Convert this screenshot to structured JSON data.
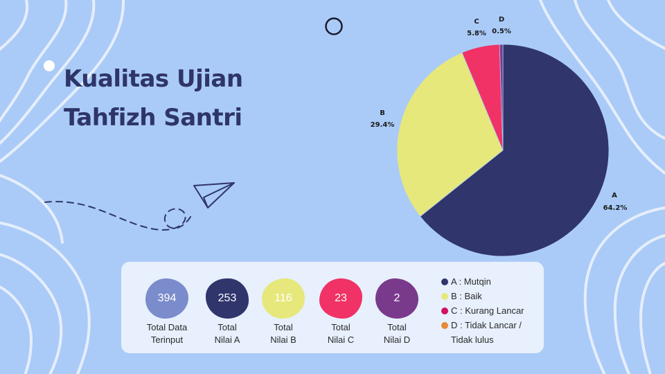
{
  "title_lines": [
    "Kualitas Ujian",
    "Tahfizh Santri"
  ],
  "colors": {
    "background": "#aacbf7",
    "deco_lines": "#e6eefc",
    "title": "#2f3568",
    "a": "#30356b",
    "b": "#e6e87b",
    "c": "#f03266",
    "d": "#7a3a8c",
    "total": "#7b8ccc"
  },
  "chart_data": {
    "type": "pie",
    "title": "",
    "categories": [
      "A",
      "B",
      "C",
      "D"
    ],
    "values": [
      64.2,
      29.4,
      5.8,
      0.5
    ],
    "value_labels": [
      "64.2%",
      "29.4%",
      "5.8%",
      "0.5%"
    ],
    "legend_position": "bottom"
  },
  "stats": [
    {
      "value": "394",
      "label_lines": [
        "Total Data",
        "Terinput"
      ],
      "color": "#7b8ccc",
      "text_color": "#ffffff"
    },
    {
      "value": "253",
      "label_lines": [
        "Total",
        "Nilai A"
      ],
      "color": "#30356b",
      "text_color": "#ffffff"
    },
    {
      "value": "116",
      "label_lines": [
        "Total",
        "Nilai B"
      ],
      "color": "#e6e87b",
      "text_color": "#ffffff"
    },
    {
      "value": "23",
      "label_lines": [
        "Total",
        "Nilai C"
      ],
      "color": "#f03266",
      "text_color": "#ffffff"
    },
    {
      "value": "2",
      "label_lines": [
        "Total",
        "Nilai D"
      ],
      "color": "#7a3a8c",
      "text_color": "#ffffff"
    }
  ],
  "legend": [
    {
      "text": "A : Mutqin",
      "color": "#30356b"
    },
    {
      "text": "B : Baik",
      "color": "#e6e87b"
    },
    {
      "text": "C : Kurang Lancar",
      "color": "#d0125e"
    },
    {
      "text": "D : Tidak Lancar /",
      "color": "#e8893a"
    },
    {
      "text": "Tidak lulus",
      "color": ""
    }
  ]
}
